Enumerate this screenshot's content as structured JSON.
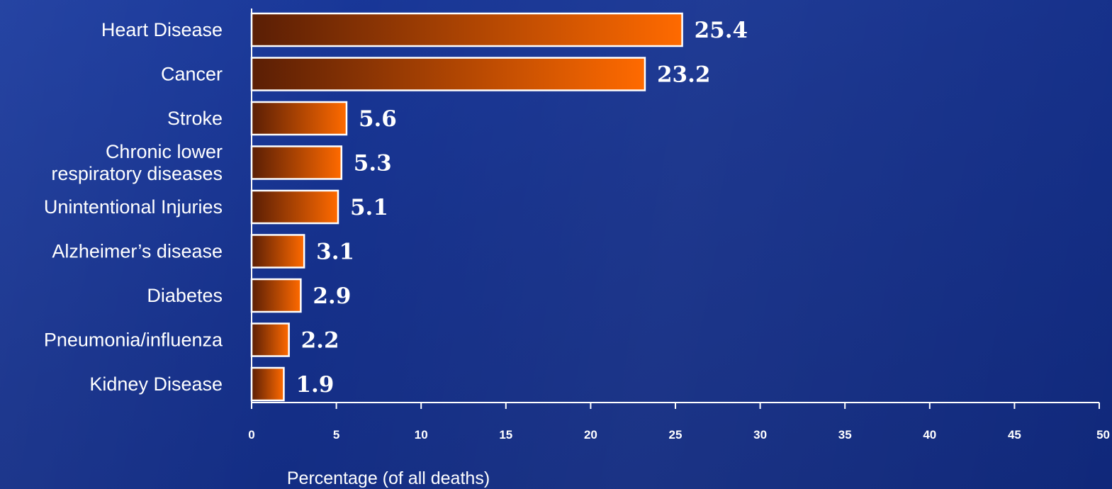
{
  "chart_data": {
    "type": "bar",
    "orientation": "horizontal",
    "categories": [
      [
        "Heart Disease"
      ],
      [
        "Cancer"
      ],
      [
        "Stroke"
      ],
      [
        "Chronic lower",
        "respiratory diseases"
      ],
      [
        "Unintentional Injuries"
      ],
      [
        "Alzheimer’s disease"
      ],
      [
        "Diabetes"
      ],
      [
        "Pneumonia/influenza"
      ],
      [
        "Kidney Disease"
      ]
    ],
    "values": [
      25.4,
      23.2,
      5.6,
      5.3,
      5.1,
      3.1,
      2.9,
      2.2,
      1.9
    ],
    "value_labels": [
      "25.4",
      "23.2",
      "5.6",
      "5.3",
      "5.1",
      "3.1",
      "2.9",
      "2.2",
      "1.9"
    ],
    "xlabel": "Percentage (of all deaths)",
    "ylabel": "",
    "xlim": [
      0,
      50
    ],
    "xticks": [
      "0",
      "5",
      "10",
      "15",
      "20",
      "25",
      "30",
      "35",
      "40",
      "45",
      "50"
    ],
    "grid": false,
    "colors": {
      "background": "#15308a",
      "bar_dark": "#5a1e05",
      "bar_light": "#ff6a00",
      "bar_border": "#ffffff",
      "text": "#ffffff"
    }
  }
}
